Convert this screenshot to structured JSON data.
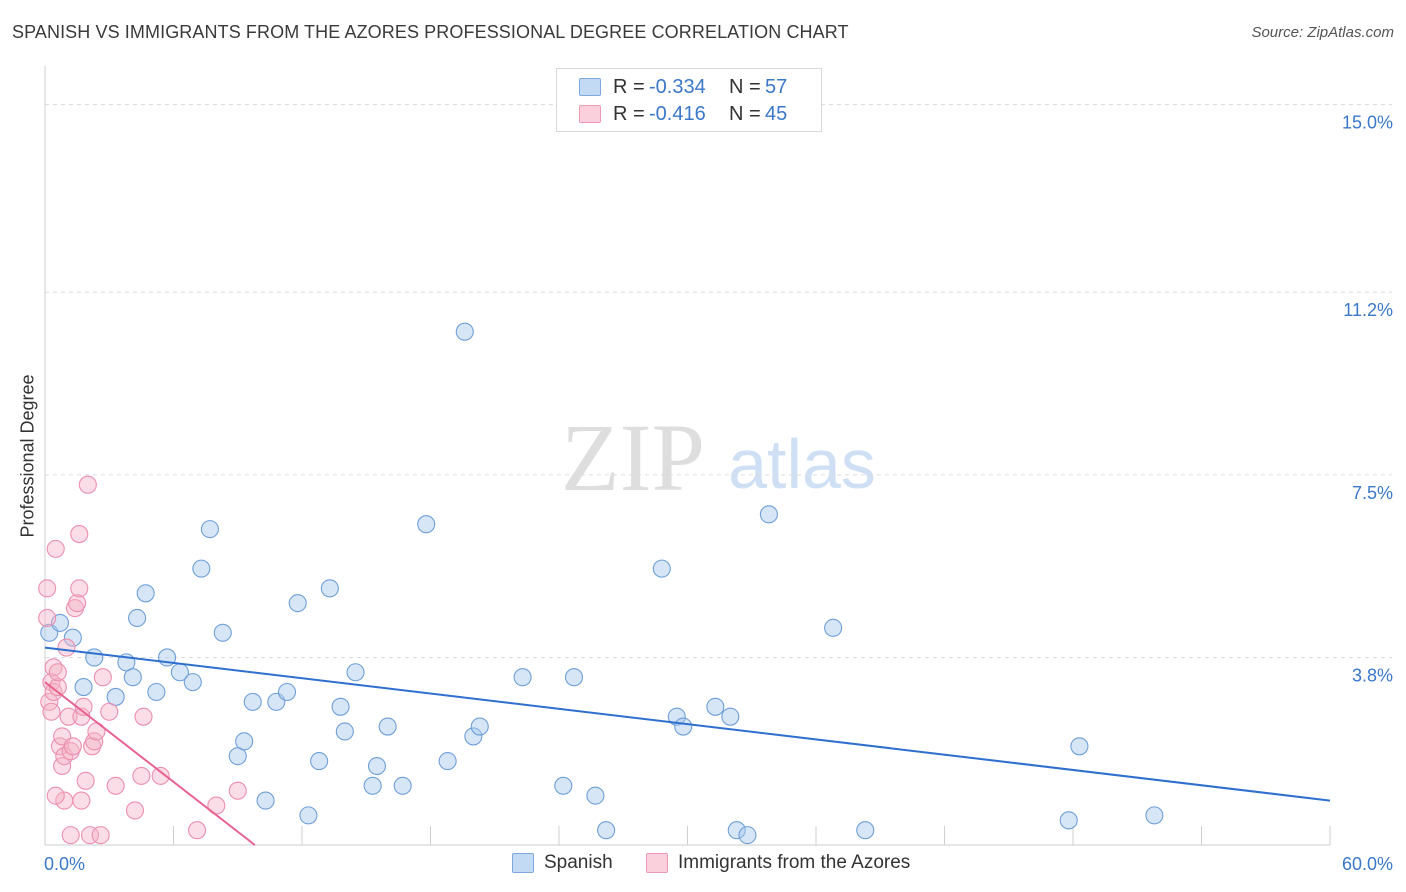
{
  "title": "SPANISH VS IMMIGRANTS FROM THE AZORES PROFESSIONAL DEGREE CORRELATION CHART",
  "source": "Source: ZipAtlas.com",
  "watermark": {
    "zip": "ZIP",
    "atlas": "atlas"
  },
  "legend_top": {
    "rows": [
      {
        "r_label": "R =",
        "r_value": "-0.334",
        "n_label": "N =",
        "n_value": "57"
      },
      {
        "r_label": "R =",
        "r_value": "-0.416",
        "n_label": "N =",
        "n_value": "45"
      }
    ]
  },
  "legend_bottom": {
    "spanish": "Spanish",
    "azores": "Immigrants from the Azores"
  },
  "chart_data": {
    "type": "scatter",
    "title": "SPANISH VS IMMIGRANTS FROM THE AZORES PROFESSIONAL DEGREE CORRELATION CHART",
    "xlabel": "",
    "ylabel": "Professional Degree",
    "xlim": [
      0,
      60
    ],
    "ylim": [
      0,
      15.5
    ],
    "x_tick_labels": [
      "0.0%",
      "60.0%"
    ],
    "y_ticks": [
      3.8,
      7.5,
      11.2,
      15.0
    ],
    "y_tick_labels": [
      "3.8%",
      "7.5%",
      "11.2%",
      "15.0%"
    ],
    "colors": {
      "spanish": "#a7c8ee",
      "spanish_line": "#2f6fce",
      "azores": "#f5b4c8",
      "azores_line": "#e8628e"
    },
    "series": [
      {
        "name": "Spanish",
        "r": -0.334,
        "n": 57,
        "trend": {
          "x": [
            0.0,
            60.0
          ],
          "y": [
            4.0,
            0.9
          ]
        },
        "points": [
          [
            0.2,
            4.3
          ],
          [
            0.7,
            4.5
          ],
          [
            1.3,
            4.2
          ],
          [
            1.8,
            3.2
          ],
          [
            2.3,
            3.8
          ],
          [
            3.3,
            3.0
          ],
          [
            3.8,
            3.7
          ],
          [
            4.1,
            3.4
          ],
          [
            4.3,
            4.6
          ],
          [
            4.7,
            5.1
          ],
          [
            5.2,
            3.1
          ],
          [
            5.7,
            3.8
          ],
          [
            6.3,
            3.5
          ],
          [
            6.9,
            3.3
          ],
          [
            7.3,
            5.6
          ],
          [
            7.7,
            6.4
          ],
          [
            8.3,
            4.3
          ],
          [
            9.0,
            1.8
          ],
          [
            9.3,
            2.1
          ],
          [
            9.7,
            2.9
          ],
          [
            10.3,
            0.9
          ],
          [
            10.8,
            2.9
          ],
          [
            11.3,
            3.1
          ],
          [
            11.8,
            4.9
          ],
          [
            12.3,
            0.6
          ],
          [
            12.8,
            1.7
          ],
          [
            13.3,
            5.2
          ],
          [
            13.8,
            2.8
          ],
          [
            14.0,
            2.3
          ],
          [
            14.5,
            3.5
          ],
          [
            15.3,
            1.2
          ],
          [
            15.5,
            1.6
          ],
          [
            16.0,
            2.4
          ],
          [
            16.7,
            1.2
          ],
          [
            17.8,
            6.5
          ],
          [
            18.8,
            1.7
          ],
          [
            20.0,
            2.2
          ],
          [
            20.3,
            2.4
          ],
          [
            19.6,
            10.4
          ],
          [
            22.3,
            3.4
          ],
          [
            24.2,
            1.2
          ],
          [
            24.7,
            3.4
          ],
          [
            25.7,
            1.0
          ],
          [
            26.2,
            0.3
          ],
          [
            28.8,
            5.6
          ],
          [
            29.5,
            2.6
          ],
          [
            29.8,
            2.4
          ],
          [
            31.3,
            2.8
          ],
          [
            32.0,
            2.6
          ],
          [
            32.3,
            0.3
          ],
          [
            32.8,
            0.2
          ],
          [
            33.8,
            6.7
          ],
          [
            36.8,
            4.4
          ],
          [
            38.3,
            0.3
          ],
          [
            47.8,
            0.5
          ],
          [
            48.3,
            2.0
          ],
          [
            51.8,
            0.6
          ]
        ]
      },
      {
        "name": "Immigrants from the Azores",
        "r": -0.416,
        "n": 45,
        "trend": {
          "x": [
            0.0,
            9.8
          ],
          "y": [
            3.3,
            0.0
          ]
        },
        "points": [
          [
            0.1,
            4.6
          ],
          [
            0.1,
            5.2
          ],
          [
            0.2,
            2.9
          ],
          [
            0.3,
            3.3
          ],
          [
            0.4,
            3.6
          ],
          [
            0.4,
            3.1
          ],
          [
            0.5,
            6.0
          ],
          [
            0.6,
            3.2
          ],
          [
            0.6,
            3.5
          ],
          [
            0.7,
            2.0
          ],
          [
            0.8,
            2.2
          ],
          [
            0.8,
            1.6
          ],
          [
            0.9,
            1.8
          ],
          [
            0.9,
            0.9
          ],
          [
            1.0,
            4.0
          ],
          [
            1.1,
            2.6
          ],
          [
            1.2,
            1.9
          ],
          [
            1.2,
            0.2
          ],
          [
            1.3,
            2.0
          ],
          [
            1.4,
            4.8
          ],
          [
            1.5,
            4.9
          ],
          [
            1.6,
            6.3
          ],
          [
            1.6,
            5.2
          ],
          [
            1.7,
            2.6
          ],
          [
            1.7,
            0.9
          ],
          [
            1.8,
            2.8
          ],
          [
            1.9,
            1.3
          ],
          [
            2.0,
            7.3
          ],
          [
            2.1,
            0.2
          ],
          [
            2.2,
            2.0
          ],
          [
            2.3,
            2.1
          ],
          [
            2.4,
            2.3
          ],
          [
            2.6,
            0.2
          ],
          [
            2.7,
            3.4
          ],
          [
            3.0,
            2.7
          ],
          [
            3.3,
            1.2
          ],
          [
            4.2,
            0.7
          ],
          [
            4.5,
            1.4
          ],
          [
            4.6,
            2.6
          ],
          [
            5.4,
            1.4
          ],
          [
            7.1,
            0.3
          ],
          [
            8.0,
            0.8
          ],
          [
            9.0,
            1.1
          ],
          [
            0.3,
            2.7
          ],
          [
            0.5,
            1.0
          ]
        ]
      }
    ]
  }
}
